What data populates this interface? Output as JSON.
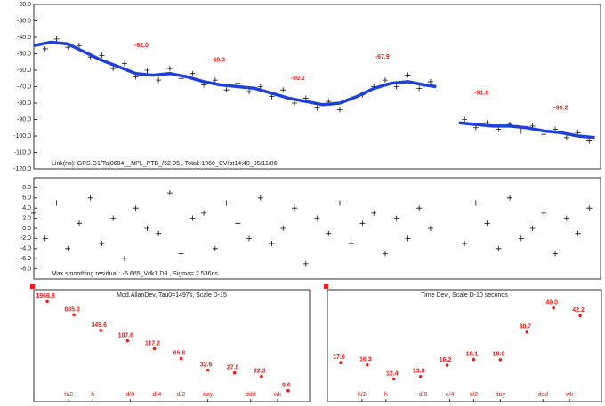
{
  "chart_data": [
    {
      "type": "line",
      "xlim": [
        0,
        100
      ],
      "ylim": [
        -120,
        -20
      ],
      "yticks": [
        {
          "value": -20,
          "label": "-20.0"
        },
        {
          "value": -30,
          "label": "-30.0"
        },
        {
          "value": -40,
          "label": "-40.0"
        },
        {
          "value": -50,
          "label": "-50.0"
        },
        {
          "value": -60,
          "label": "-60.0"
        },
        {
          "value": -70,
          "label": "-70.0"
        },
        {
          "value": -80,
          "label": "-80.0"
        },
        {
          "value": -90,
          "label": "-90.0"
        },
        {
          "value": -100,
          "label": "-100.0"
        },
        {
          "value": -110,
          "label": "-110.0"
        },
        {
          "value": -120,
          "label": "-120.0"
        }
      ],
      "series": [
        {
          "style": "cross",
          "color": "#111111",
          "x": [
            0,
            2,
            4,
            6,
            8,
            10,
            12,
            14,
            16,
            18,
            20,
            22,
            24,
            26,
            28,
            30,
            32,
            34,
            36,
            38,
            40,
            42,
            44,
            46,
            48,
            50,
            52,
            54,
            56,
            58,
            60,
            62,
            64,
            66,
            68,
            70,
            76,
            78,
            80,
            82,
            84,
            86,
            88,
            90,
            92,
            94,
            96,
            98
          ],
          "values": [
            -44,
            -47,
            -41,
            -46,
            -45,
            -52,
            -51,
            -59,
            -56,
            -64,
            -60,
            -66,
            -59,
            -65,
            -62,
            -69,
            -66,
            -72,
            -68,
            -73,
            -70,
            -76,
            -72,
            -80,
            -77,
            -83,
            -79,
            -84,
            -77,
            -75,
            -70,
            -66,
            -70,
            -63,
            -71,
            -67,
            -90,
            -95,
            -92,
            -96,
            -93,
            -97,
            -94,
            -99,
            -96,
            -101,
            -98,
            -103
          ]
        },
        {
          "style": "line",
          "color": "#1f3fd6",
          "x": [
            0,
            3,
            6,
            9,
            12,
            15,
            18,
            21,
            24,
            27,
            30,
            33,
            36,
            39,
            42,
            45,
            48,
            51,
            54,
            57,
            60,
            63,
            66,
            69,
            71,
            73,
            75,
            78,
            81,
            84,
            87,
            90,
            93,
            96,
            99
          ],
          "values": [
            -45,
            -43,
            -44,
            -49,
            -54,
            -58,
            -62,
            -63,
            -62,
            -64,
            -67,
            -69,
            -70,
            -71,
            -74,
            -77,
            -79,
            -81,
            -80,
            -76,
            -71,
            -68,
            -67,
            -69,
            -70,
            null,
            -92,
            -93,
            -94,
            -94,
            -95,
            -97,
            -98,
            -100,
            -101
          ]
        }
      ],
      "annotation_color": "#e8201c",
      "annotations": [
        {
          "text": "-62.0",
          "x": 19,
          "y": -45
        },
        {
          "text": "-69.3",
          "x": 32.5,
          "y": -54
        },
        {
          "text": "-80.2",
          "x": 46.6,
          "y": -65
        },
        {
          "text": "-67.9",
          "x": 61.5,
          "y": -52
        },
        {
          "text": "-91.8",
          "x": 79,
          "y": -74
        },
        {
          "text": "-99.2",
          "x": 93,
          "y": -83
        }
      ],
      "footer": "Link(ns): GPS.G1/Tai0604__NPL_PTB_/52-05 , Total: 1960_CV/at14:40_05/11/06"
    },
    {
      "type": "scatter",
      "xlim": [
        0,
        100
      ],
      "ylim": [
        -10,
        10
      ],
      "yticks": [
        {
          "value": 8,
          "label": "8.0"
        },
        {
          "value": 6,
          "label": "6.0"
        },
        {
          "value": 4,
          "label": "4.0"
        },
        {
          "value": 2,
          "label": "2.0"
        },
        {
          "value": 0,
          "label": "0.0"
        },
        {
          "value": -2,
          "label": "-2.0"
        },
        {
          "value": -4,
          "label": "-4.0"
        },
        {
          "value": -6,
          "label": "-6.0"
        },
        {
          "value": -8,
          "label": "-8.0"
        }
      ],
      "series": [
        {
          "style": "cross",
          "color": "#111111",
          "x": [
            0,
            2,
            4,
            6,
            8,
            10,
            12,
            14,
            16,
            18,
            20,
            22,
            24,
            26,
            28,
            30,
            32,
            34,
            36,
            38,
            40,
            42,
            44,
            46,
            48,
            50,
            52,
            54,
            56,
            58,
            60,
            62,
            64,
            66,
            68,
            70,
            76,
            78,
            80,
            82,
            84,
            86,
            88,
            90,
            92,
            94,
            96,
            98
          ],
          "values": [
            3,
            -2,
            5,
            -4,
            1,
            6,
            -3,
            2,
            -6,
            4,
            0,
            -1,
            7,
            -5,
            2,
            3,
            -4,
            5,
            1,
            -2,
            6,
            -3,
            0,
            4,
            -7,
            2,
            -1,
            5,
            -3,
            1,
            3,
            -5,
            2,
            -2,
            4,
            0,
            -3,
            5,
            1,
            -4,
            6,
            -2,
            0,
            3,
            -5,
            2,
            -1,
            4
          ]
        }
      ],
      "footer": "Max smoothing residual : -6.665_Vdk1.D3 , Sigma= 2.536ns"
    },
    {
      "type": "scatter",
      "title": "Mod.AllanDev, Tau0=1497s, Scale D-15",
      "log_y": true,
      "xlim": [
        -0.5,
        9.8
      ],
      "ylim": [
        5,
        4000
      ],
      "xticks": [
        {
          "value": 0.8,
          "label": "h/2"
        },
        {
          "value": 1.7,
          "label": "h"
        },
        {
          "value": 3.1,
          "label": "d/8"
        },
        {
          "value": 4.1,
          "label": "d/4"
        },
        {
          "value": 5.0,
          "label": "d/2"
        },
        {
          "value": 6.0,
          "label": "day"
        },
        {
          "value": 7.6,
          "label": "ddd"
        },
        {
          "value": 8.6,
          "label": "wk"
        }
      ],
      "label_color": "#e8201c",
      "series": [
        {
          "style": "dot",
          "color": "#e8201c",
          "x": [
            0,
            1,
            2,
            3,
            4,
            5,
            6,
            7,
            8,
            9
          ],
          "values": [
            1966.8,
            885.0,
            349.6,
            187.6,
            117.2,
            65.6,
            32.6,
            27.8,
            22.3,
            9.6
          ],
          "value_labels": [
            "1966.8",
            "885.0",
            "349.6",
            "187.6",
            "117.2",
            "65.6",
            "32.6",
            "27.8",
            "22.3",
            "9.6"
          ]
        }
      ]
    },
    {
      "type": "scatter",
      "title": "Time Dev., Scale D-10 seconds",
      "log_y": true,
      "xlim": [
        -0.5,
        9.8
      ],
      "ylim": [
        8,
        70
      ],
      "xticks": [
        {
          "value": 0.8,
          "label": "h/2"
        },
        {
          "value": 1.7,
          "label": "h"
        },
        {
          "value": 3.1,
          "label": "d/8"
        },
        {
          "value": 4.1,
          "label": "d/4"
        },
        {
          "value": 5.0,
          "label": "d/2"
        },
        {
          "value": 6.0,
          "label": "day"
        },
        {
          "value": 7.6,
          "label": "ddd"
        },
        {
          "value": 8.6,
          "label": "wk"
        }
      ],
      "label_color": "#e8201c",
      "series": [
        {
          "style": "dot",
          "color": "#e8201c",
          "x": [
            0,
            1,
            2,
            3,
            4,
            5,
            6,
            7,
            8,
            9
          ],
          "values": [
            17.0,
            16.3,
            12.4,
            13.0,
            16.2,
            18.1,
            18.0,
            30.7,
            49.0,
            42.2
          ],
          "value_labels": [
            "17.0",
            "16.3",
            "12.4",
            "13.0",
            "16.2",
            "18.1",
            "18.0",
            "30.7",
            "49.0",
            "42.2"
          ]
        }
      ]
    }
  ]
}
